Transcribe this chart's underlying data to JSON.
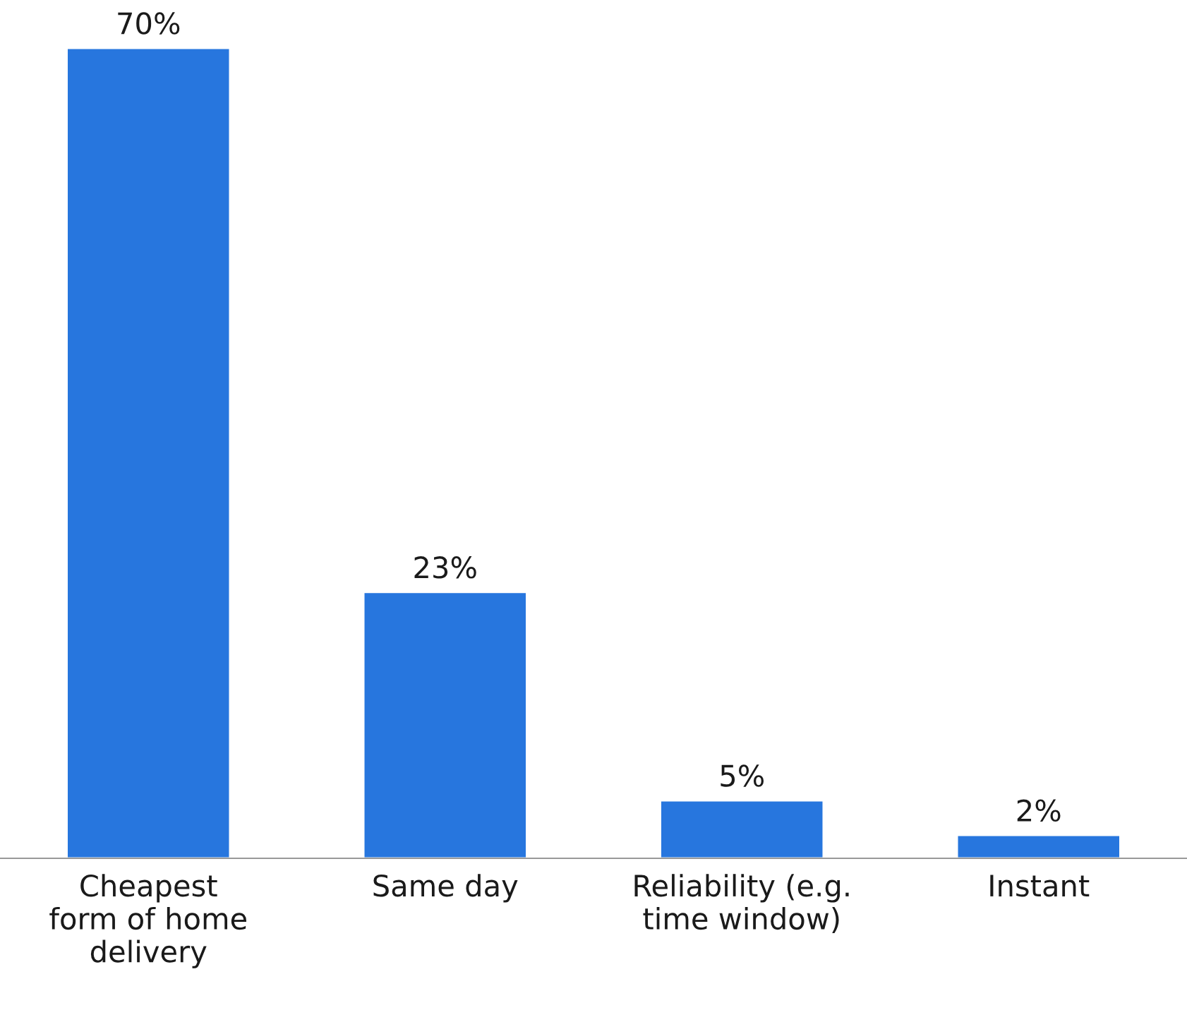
{
  "chart_data": {
    "type": "bar",
    "categories": [
      "Cheapest\nform of home\ndelivery",
      "Same day",
      "Reliability (e.g.\ntime window)",
      "Instant"
    ],
    "values": [
      70,
      23,
      5,
      2
    ],
    "value_labels": [
      "70%",
      "23%",
      "5%",
      "2%"
    ],
    "color": "#2776de",
    "grid": false,
    "legend": false
  }
}
